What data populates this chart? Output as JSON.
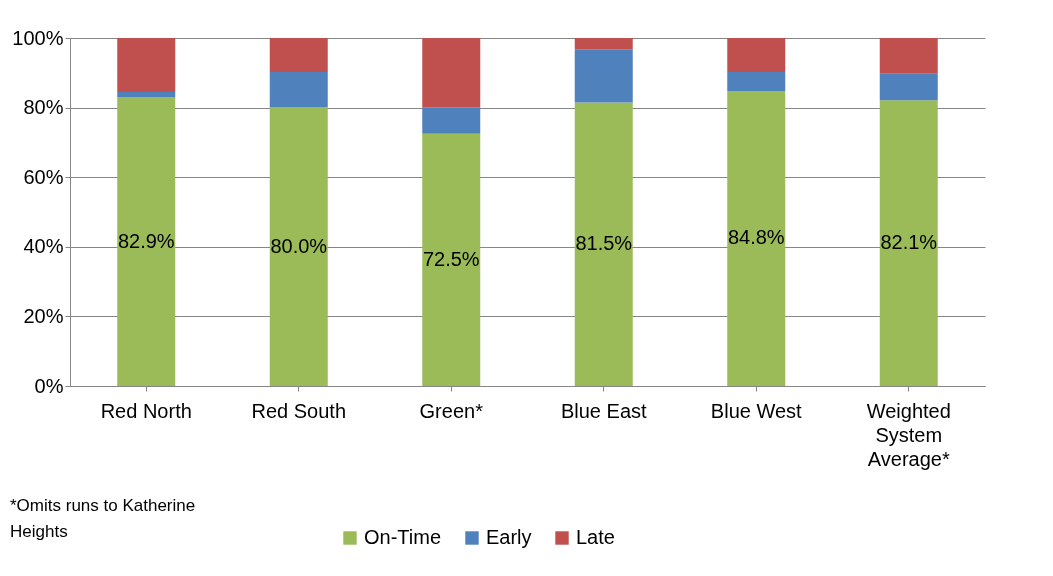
{
  "chart_data": {
    "type": "bar",
    "stacked": true,
    "categories": [
      "Red North",
      "Red South",
      "Green*",
      "Blue East",
      "Blue West",
      "Weighted System Average*"
    ],
    "series": [
      {
        "name": "On-Time",
        "color": "#9bbb59",
        "values": [
          82.9,
          80.0,
          72.5,
          81.5,
          84.8,
          82.1
        ],
        "value_labels": [
          "82.9%",
          "80.0%",
          "72.5%",
          "81.5%",
          "84.8%",
          "82.1%"
        ]
      },
      {
        "name": "Early",
        "color": "#4f81bd",
        "values": [
          1.6,
          10.2,
          7.6,
          15.3,
          5.4,
          7.6
        ]
      },
      {
        "name": "Late",
        "color": "#c0504d",
        "values": [
          15.5,
          9.8,
          19.9,
          3.2,
          9.8,
          10.3
        ]
      }
    ],
    "ylim": [
      0,
      100
    ],
    "yticks": [
      {
        "value": 0,
        "label": "0%"
      },
      {
        "value": 20,
        "label": "20%"
      },
      {
        "value": 40,
        "label": "40%"
      },
      {
        "value": 60,
        "label": "60%"
      },
      {
        "value": 80,
        "label": "80%"
      },
      {
        "value": 100,
        "label": "100%"
      }
    ],
    "grid": "y",
    "legend": "bottom",
    "annotations": [
      "*Omits runs to Katherine Heights"
    ]
  }
}
